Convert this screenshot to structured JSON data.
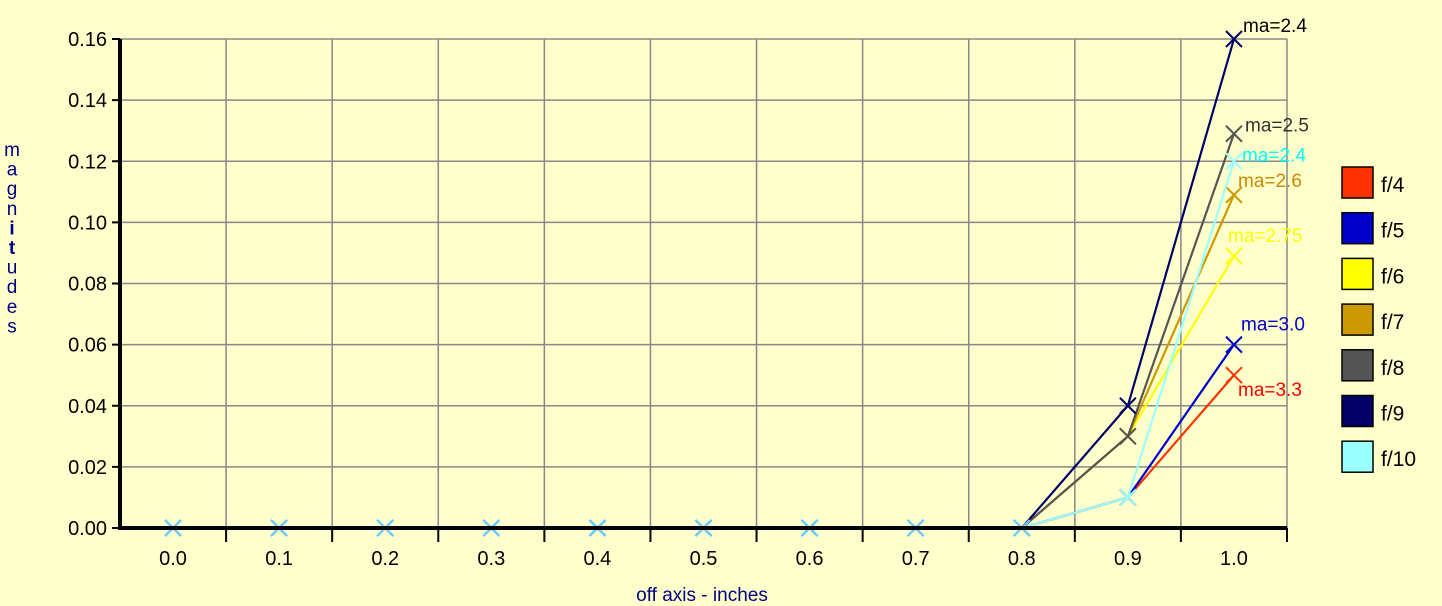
{
  "chart_data": {
    "type": "line",
    "xlabel": "off axis - inches",
    "ylabel": "magnitudes",
    "ylim": [
      0,
      0.16
    ],
    "grid": true,
    "legend_position": "right",
    "categories": [
      "0.0",
      "0.1",
      "0.2",
      "0.3",
      "0.4",
      "0.5",
      "0.6",
      "0.7",
      "0.8",
      "0.9",
      "1.0"
    ],
    "y_ticks": [
      "0.00",
      "0.02",
      "0.04",
      "0.06",
      "0.08",
      "0.10",
      "0.12",
      "0.14",
      "0.16"
    ],
    "series": [
      {
        "name": "f/4",
        "color": "#FF3300",
        "values": [
          0,
          0,
          0,
          0,
          0,
          0,
          0,
          0,
          0,
          0.01,
          0.05
        ],
        "annotation": "ma=3.3",
        "annotation_color": "#FF0000"
      },
      {
        "name": "f/5",
        "color": "#0000CC",
        "values": [
          0,
          0,
          0,
          0,
          0,
          0,
          0,
          0,
          0,
          0.01,
          0.06
        ],
        "annotation": "ma=3.0",
        "annotation_color": "#0000CC"
      },
      {
        "name": "f/6",
        "color": "#FFFF00",
        "values": [
          0,
          0,
          0,
          0,
          0,
          0,
          0,
          0,
          0,
          0.03,
          0.089
        ],
        "annotation": "ma=2.75",
        "annotation_color": "#FFFF00"
      },
      {
        "name": "f/7",
        "color": "#CC9900",
        "values": [
          0,
          0,
          0,
          0,
          0,
          0,
          0,
          0,
          0,
          0.03,
          0.109
        ],
        "annotation": "ma=2.6",
        "annotation_color": "#CC8800"
      },
      {
        "name": "f/8",
        "color": "#555555",
        "values": [
          0,
          0,
          0,
          0,
          0,
          0,
          0,
          0,
          0,
          0.03,
          0.129
        ],
        "annotation": "ma=2.5",
        "annotation_color": "#333333"
      },
      {
        "name": "f/9",
        "color": "#000066",
        "values": [
          0,
          0,
          0,
          0,
          0,
          0,
          0,
          0,
          0,
          0.04,
          0.16
        ],
        "annotation": "ma=2.4",
        "annotation_color": "#000000"
      },
      {
        "name": "f/10",
        "color": "#99FFFF",
        "values": [
          0,
          0,
          0,
          0,
          0,
          0,
          0,
          0,
          0,
          0.01,
          0.12
        ],
        "annotation": "ma=2.4",
        "annotation_color": "#00FFFF"
      }
    ]
  }
}
